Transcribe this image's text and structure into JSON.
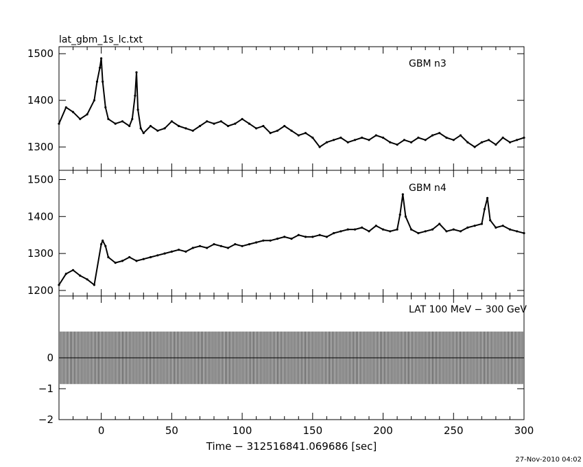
{
  "figure": {
    "file_label": "lat_gbm_1s_lc.txt",
    "xlabel": "Time − 312516841.069686 [sec]",
    "timestamp": "27-Nov-2010 04:02"
  },
  "colors": {
    "line": "#000000",
    "background": "#ffffff"
  },
  "chart_data": [
    {
      "type": "line",
      "title": "GBM n3",
      "xlim": [
        -30,
        300
      ],
      "ylim": [
        1250,
        1515
      ],
      "yticks": [
        1300,
        1400,
        1500
      ],
      "xticks": [
        0,
        50,
        100,
        150,
        200,
        250,
        300
      ],
      "grid": false,
      "series": [
        {
          "name": "GBM n3",
          "x": [
            -30,
            -25,
            -20,
            -15,
            -10,
            -5,
            -3,
            -1,
            0,
            1,
            3,
            5,
            10,
            15,
            20,
            22,
            24,
            25,
            26,
            28,
            30,
            35,
            40,
            45,
            50,
            55,
            60,
            65,
            70,
            75,
            80,
            85,
            90,
            95,
            100,
            105,
            110,
            115,
            120,
            125,
            130,
            135,
            140,
            145,
            150,
            155,
            160,
            165,
            170,
            175,
            180,
            185,
            190,
            195,
            200,
            205,
            210,
            215,
            220,
            225,
            230,
            235,
            240,
            245,
            250,
            255,
            260,
            265,
            270,
            275,
            280,
            285,
            290,
            295,
            300
          ],
          "y": [
            1350,
            1385,
            1375,
            1360,
            1370,
            1400,
            1440,
            1470,
            1490,
            1440,
            1385,
            1360,
            1350,
            1355,
            1345,
            1360,
            1410,
            1460,
            1380,
            1340,
            1330,
            1345,
            1335,
            1340,
            1355,
            1345,
            1340,
            1335,
            1345,
            1355,
            1350,
            1355,
            1345,
            1350,
            1360,
            1350,
            1340,
            1345,
            1330,
            1335,
            1345,
            1335,
            1325,
            1330,
            1320,
            1300,
            1310,
            1315,
            1320,
            1310,
            1315,
            1320,
            1315,
            1325,
            1320,
            1310,
            1305,
            1315,
            1310,
            1320,
            1315,
            1325,
            1330,
            1320,
            1315,
            1325,
            1310,
            1300,
            1310,
            1315,
            1305,
            1320,
            1310,
            1315,
            1320
          ]
        }
      ]
    },
    {
      "type": "line",
      "title": "GBM n4",
      "xlim": [
        -30,
        300
      ],
      "ylim": [
        1185,
        1525
      ],
      "yticks": [
        1200,
        1300,
        1400,
        1500
      ],
      "xticks": [
        0,
        50,
        100,
        150,
        200,
        250,
        300
      ],
      "grid": false,
      "series": [
        {
          "name": "GBM n4",
          "x": [
            -30,
            -25,
            -20,
            -15,
            -10,
            -5,
            0,
            1,
            3,
            5,
            10,
            15,
            20,
            25,
            30,
            35,
            40,
            45,
            50,
            55,
            60,
            65,
            70,
            75,
            80,
            85,
            90,
            95,
            100,
            105,
            110,
            115,
            120,
            125,
            130,
            135,
            140,
            145,
            150,
            155,
            160,
            165,
            170,
            175,
            180,
            185,
            190,
            195,
            200,
            205,
            210,
            212,
            214,
            216,
            220,
            225,
            230,
            235,
            240,
            245,
            250,
            255,
            260,
            265,
            270,
            272,
            274,
            276,
            280,
            285,
            290,
            295,
            300
          ],
          "y": [
            1215,
            1245,
            1255,
            1240,
            1230,
            1215,
            1325,
            1335,
            1320,
            1290,
            1275,
            1280,
            1290,
            1280,
            1285,
            1290,
            1295,
            1300,
            1305,
            1310,
            1305,
            1315,
            1320,
            1315,
            1325,
            1320,
            1315,
            1325,
            1320,
            1325,
            1330,
            1335,
            1335,
            1340,
            1345,
            1340,
            1350,
            1345,
            1345,
            1350,
            1345,
            1355,
            1360,
            1365,
            1365,
            1370,
            1360,
            1375,
            1365,
            1360,
            1365,
            1405,
            1460,
            1400,
            1365,
            1355,
            1360,
            1365,
            1380,
            1360,
            1365,
            1360,
            1370,
            1375,
            1380,
            1420,
            1450,
            1390,
            1370,
            1375,
            1365,
            1360,
            1355
          ]
        }
      ]
    },
    {
      "type": "line",
      "title": "LAT 100 MeV − 300 GeV",
      "xlim": [
        -30,
        300
      ],
      "ylim": [
        -2,
        2
      ],
      "yticks": [
        -2,
        -1,
        0
      ],
      "xticks": [
        0,
        50,
        100,
        150,
        200,
        250,
        300
      ],
      "grid": false,
      "series": [
        {
          "name": "LAT 100 MeV − 300 GeV",
          "x": [
            -30,
            300
          ],
          "y": [
            0,
            0
          ],
          "error": 0.85
        }
      ]
    }
  ]
}
